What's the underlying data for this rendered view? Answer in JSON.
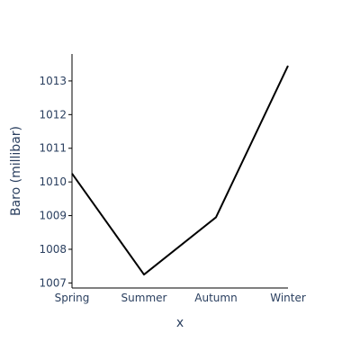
{
  "chart_data": {
    "type": "line",
    "categories": [
      "Spring",
      "Summer",
      "Autumn",
      "Winter"
    ],
    "series": [
      {
        "values": [
          1010.25,
          1007.25,
          1008.95,
          1013.45
        ],
        "color": "#000000"
      }
    ],
    "title": "",
    "xlabel": "x",
    "ylabel": "Baro (millibar)",
    "ylim": [
      1006.85,
      1013.8
    ],
    "yticks": [
      1007,
      1008,
      1009,
      1010,
      1011,
      1012,
      1013
    ],
    "grid": false,
    "axis_color": "#000000",
    "text_color": "#2a3f5f"
  }
}
